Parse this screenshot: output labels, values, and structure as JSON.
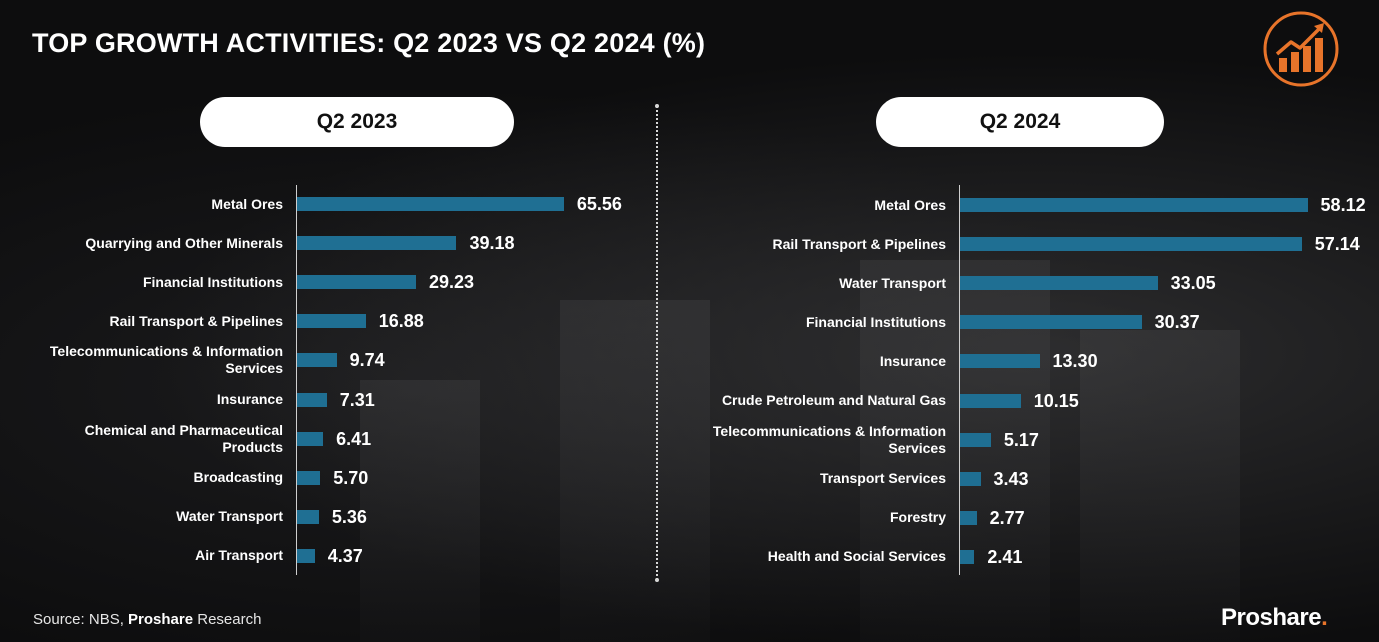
{
  "page": {
    "title": "TOP GROWTH ACTIVITIES: Q2 2023 VS Q2 2024 (%)",
    "source_prefix": "Source: NBS, ",
    "source_bold": "Proshare",
    "source_suffix": " Research",
    "brand_name": "Proshare",
    "brand_dot": ".",
    "logo_icon": "growth-chart-icon",
    "colors": {
      "bar": "#1f6f93",
      "accent": "#e8742a",
      "background": "#0d0d0e"
    }
  },
  "chart_data": [
    {
      "type": "bar",
      "orientation": "horizontal",
      "title": "Q2 2023",
      "categories": [
        "Metal Ores",
        "Quarrying and Other Minerals",
        "Financial Institutions",
        "Rail Transport & Pipelines",
        "Telecommunications & Information Services",
        "Insurance",
        "Chemical and  Pharmaceutical Products",
        "Broadcasting",
        "Water Transport",
        "Air Transport"
      ],
      "values": [
        65.56,
        39.18,
        29.23,
        16.88,
        9.74,
        7.31,
        6.41,
        5.7,
        5.36,
        4.37
      ],
      "labels": [
        "65.56",
        "39.18",
        "29.23",
        "16.88",
        "9.74",
        "7.31",
        "6.41",
        "5.70",
        "5.36",
        "4.37"
      ],
      "xlabel": "",
      "ylabel": "",
      "xlim": [
        0,
        70
      ]
    },
    {
      "type": "bar",
      "orientation": "horizontal",
      "title": "Q2 2024",
      "categories": [
        "Metal Ores",
        "Rail Transport & Pipelines",
        "Water Transport",
        "Financial Institutions",
        "Insurance",
        "Crude Petroleum and Natural Gas",
        "Telecommunications & Information Services",
        "Transport Services",
        "Forestry",
        "Health and Social Services"
      ],
      "values": [
        58.12,
        57.14,
        33.05,
        30.37,
        13.3,
        10.15,
        5.17,
        3.43,
        2.77,
        2.41
      ],
      "labels": [
        "58.12",
        "57.14",
        "33.05",
        "30.37",
        "13.30",
        "10.15",
        "5.17",
        "3.43",
        "2.77",
        "2.41"
      ],
      "xlabel": "",
      "ylabel": "",
      "xlim": [
        0,
        60
      ]
    }
  ]
}
